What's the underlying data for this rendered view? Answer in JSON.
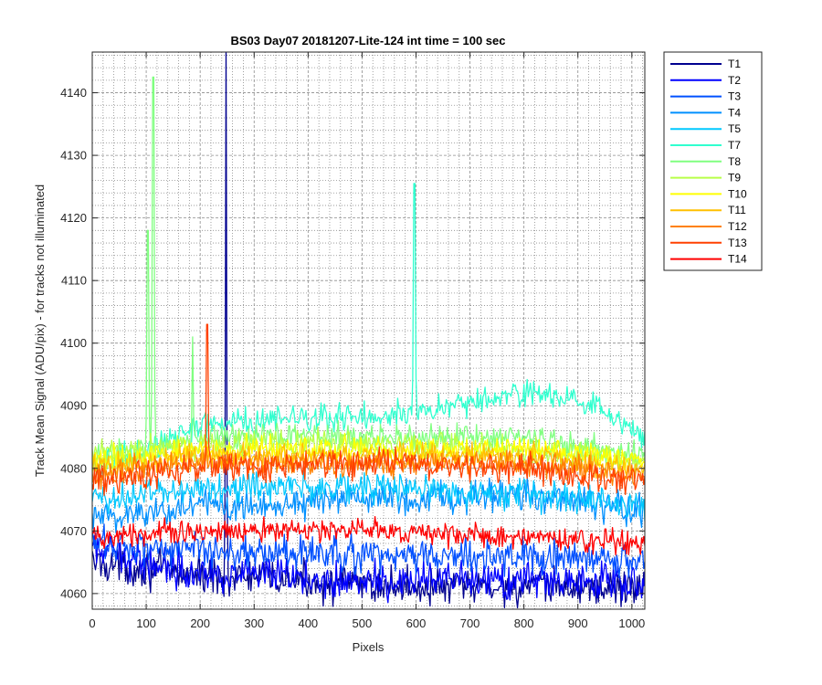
{
  "chart_data": {
    "type": "line",
    "title": "BS03 Day07 20181207-Lite-124 int time = 100 sec",
    "xlabel": "Pixels",
    "ylabel": "Track Mean Signal (ADU/pix) - for tracks not illuminated",
    "xlim": [
      0,
      1024
    ],
    "ylim": [
      4057.5,
      4146.5
    ],
    "xticks": [
      0,
      100,
      200,
      300,
      400,
      500,
      600,
      700,
      800,
      900,
      1000
    ],
    "yticks": [
      4060,
      4070,
      4080,
      4090,
      4100,
      4110,
      4120,
      4130,
      4140
    ],
    "grid": "major-and-minor",
    "legend_position": "outside-top-right",
    "series": [
      {
        "name": "T1",
        "color": "#00008f",
        "baseline": [
          [
            0,
            4065
          ],
          [
            100,
            4064
          ],
          [
            200,
            4063
          ],
          [
            400,
            4062
          ],
          [
            600,
            4061
          ],
          [
            800,
            4061
          ],
          [
            1024,
            4061
          ]
        ],
        "noise": 2.6,
        "spikes": [
          [
            248,
            4147
          ]
        ]
      },
      {
        "name": "T2",
        "color": "#0000ff",
        "baseline": [
          [
            0,
            4067
          ],
          [
            100,
            4065
          ],
          [
            250,
            4063
          ],
          [
            500,
            4062
          ],
          [
            800,
            4062
          ],
          [
            1024,
            4062
          ]
        ],
        "noise": 2.6,
        "spikes": []
      },
      {
        "name": "T3",
        "color": "#0050ff",
        "baseline": [
          [
            0,
            4068
          ],
          [
            200,
            4067
          ],
          [
            500,
            4066
          ],
          [
            800,
            4066
          ],
          [
            1024,
            4065
          ]
        ],
        "noise": 2.5,
        "spikes": []
      },
      {
        "name": "T4",
        "color": "#0090ff",
        "baseline": [
          [
            0,
            4072
          ],
          [
            200,
            4074
          ],
          [
            500,
            4075
          ],
          [
            800,
            4076
          ],
          [
            1024,
            4073
          ]
        ],
        "noise": 2.4,
        "spikes": []
      },
      {
        "name": "T5",
        "color": "#00c8ff",
        "baseline": [
          [
            0,
            4075
          ],
          [
            200,
            4077
          ],
          [
            500,
            4077
          ],
          [
            800,
            4076
          ],
          [
            1024,
            4074
          ]
        ],
        "noise": 2.2,
        "spikes": []
      },
      {
        "name": "T7",
        "color": "#30ffcf",
        "baseline": [
          [
            0,
            4080
          ],
          [
            100,
            4083
          ],
          [
            200,
            4087
          ],
          [
            400,
            4088
          ],
          [
            600,
            4089
          ],
          [
            800,
            4092
          ],
          [
            900,
            4091
          ],
          [
            1024,
            4085
          ]
        ],
        "noise": 1.9,
        "spikes": [
          [
            597,
            4125.5
          ]
        ]
      },
      {
        "name": "T8",
        "color": "#80ff80",
        "baseline": [
          [
            0,
            4081
          ],
          [
            100,
            4083
          ],
          [
            200,
            4085
          ],
          [
            500,
            4085
          ],
          [
            800,
            4085
          ],
          [
            1024,
            4082
          ]
        ],
        "noise": 1.9,
        "spikes": [
          [
            103,
            4118
          ],
          [
            113,
            4142.5
          ],
          [
            186,
            4101
          ]
        ]
      },
      {
        "name": "T9",
        "color": "#b8ff48",
        "baseline": [
          [
            0,
            4082
          ],
          [
            200,
            4084
          ],
          [
            500,
            4084
          ],
          [
            800,
            4083
          ],
          [
            1024,
            4081
          ]
        ],
        "noise": 1.8,
        "spikes": []
      },
      {
        "name": "T10",
        "color": "#ffff00",
        "baseline": [
          [
            0,
            4081
          ],
          [
            200,
            4083
          ],
          [
            500,
            4083
          ],
          [
            800,
            4083
          ],
          [
            1024,
            4081
          ]
        ],
        "noise": 1.8,
        "spikes": []
      },
      {
        "name": "T11",
        "color": "#ffc000",
        "baseline": [
          [
            0,
            4080
          ],
          [
            200,
            4082
          ],
          [
            500,
            4082
          ],
          [
            800,
            4082
          ],
          [
            1024,
            4080
          ]
        ],
        "noise": 1.8,
        "spikes": []
      },
      {
        "name": "T12",
        "color": "#ff8000",
        "baseline": [
          [
            0,
            4079
          ],
          [
            200,
            4081
          ],
          [
            500,
            4081
          ],
          [
            800,
            4081
          ],
          [
            1024,
            4079
          ]
        ],
        "noise": 1.8,
        "spikes": []
      },
      {
        "name": "T13",
        "color": "#ff4000",
        "baseline": [
          [
            0,
            4078
          ],
          [
            200,
            4080
          ],
          [
            500,
            4081
          ],
          [
            800,
            4080
          ],
          [
            1024,
            4078
          ]
        ],
        "noise": 2.0,
        "spikes": [
          [
            213,
            4103
          ]
        ]
      },
      {
        "name": "T14",
        "color": "#ff0000",
        "baseline": [
          [
            0,
            4069
          ],
          [
            200,
            4070
          ],
          [
            500,
            4070
          ],
          [
            800,
            4069
          ],
          [
            1024,
            4068
          ]
        ],
        "noise": 1.6,
        "spikes": []
      }
    ]
  }
}
